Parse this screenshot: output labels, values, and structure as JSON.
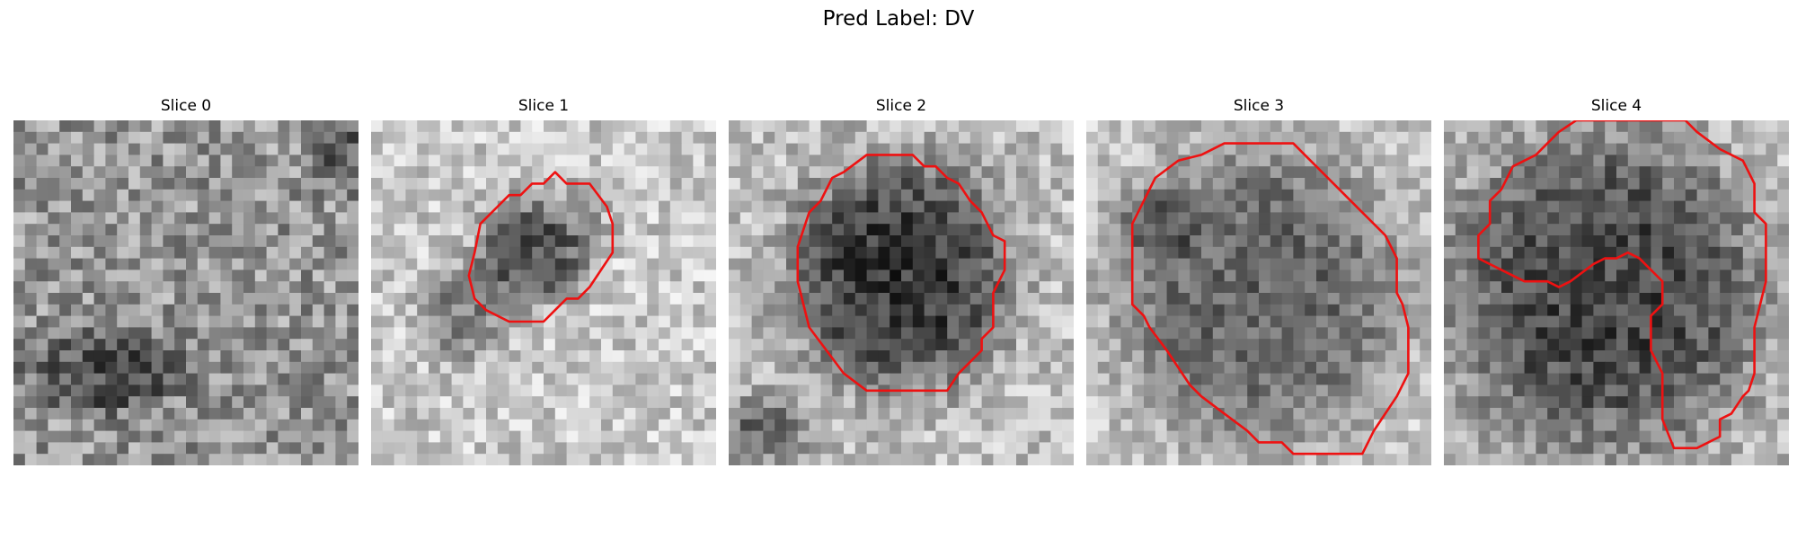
{
  "figure": {
    "title": "Pred Label: DV"
  },
  "slices": [
    {
      "title": "Slice 0",
      "has_contour": false
    },
    {
      "title": "Slice 1",
      "has_contour": true
    },
    {
      "title": "Slice 2",
      "has_contour": true
    },
    {
      "title": "Slice 3",
      "has_contour": true
    },
    {
      "title": "Slice 4",
      "has_contour": true
    }
  ],
  "colors": {
    "contour": "#ee1111",
    "background": "#ffffff"
  }
}
